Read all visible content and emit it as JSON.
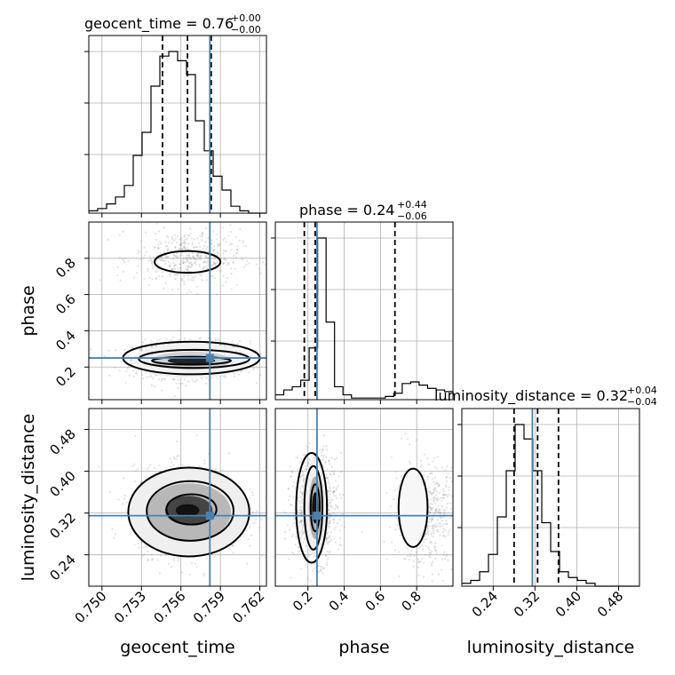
{
  "chart_data": {
    "type": "scatter",
    "subtype": "corner-plot",
    "parameters": [
      "geocent_time",
      "phase",
      "luminosity_distance"
    ],
    "ranges": {
      "geocent_time": [
        0.749,
        0.7625
      ],
      "phase": [
        0.02,
        1.0
      ],
      "luminosity_distance": [
        0.18,
        0.52
      ]
    },
    "truths": {
      "geocent_time": 0.7582,
      "phase": 0.25,
      "luminosity_distance": 0.315
    },
    "titles": {
      "geocent_time": {
        "prefix": "geocent_time = 0.76",
        "upper": "+0.00",
        "lower": "−0.00"
      },
      "phase": {
        "prefix": "phase = 0.24",
        "upper": "+0.44",
        "lower": "−0.06"
      },
      "luminosity_distance": {
        "prefix": "luminosity_distance = 0.32",
        "upper": "+0.04",
        "lower": "−0.04"
      }
    },
    "axis_labels": {
      "x": [
        "geocent_time",
        "phase",
        "luminosity_distance"
      ],
      "y": [
        "phase",
        "luminosity_distance"
      ]
    },
    "ticks": {
      "geocent_time": [
        "0.750",
        "0.753",
        "0.756",
        "0.759",
        "0.762"
      ],
      "phase": [
        "0.2",
        "0.4",
        "0.6",
        "0.8"
      ],
      "luminosity_distance": [
        "0.24",
        "0.32",
        "0.40",
        "0.48"
      ]
    },
    "tick_values": {
      "geocent_time": [
        0.75,
        0.753,
        0.756,
        0.759,
        0.762
      ],
      "phase": [
        0.2,
        0.4,
        0.6,
        0.8
      ],
      "luminosity_distance": [
        0.24,
        0.32,
        0.4,
        0.48
      ]
    },
    "quantiles": {
      "geocent_time": [
        0.7546,
        0.7565,
        0.7583
      ],
      "phase": [
        0.18,
        0.24,
        0.68
      ],
      "luminosity_distance": [
        0.28,
        0.325,
        0.365
      ]
    },
    "histograms": {
      "geocent_time": {
        "edges_start": 0.749,
        "edges_end": 0.7625,
        "counts": [
          1,
          2,
          4,
          7,
          12,
          25,
          35,
          55,
          68,
          70,
          66,
          60,
          40,
          27,
          16,
          10,
          3,
          1,
          0,
          0
        ]
      },
      "phase": {
        "edges_start": 0.02,
        "edges_end": 1.0,
        "counts": [
          3,
          6,
          8,
          12,
          32,
          100,
          48,
          8,
          3,
          1,
          1,
          1,
          1,
          2,
          4,
          10,
          11,
          9,
          7,
          6,
          5
        ]
      },
      "luminosity_distance": {
        "edges_start": 0.18,
        "edges_end": 0.52,
        "counts": [
          1,
          2,
          5,
          11,
          24,
          40,
          56,
          51,
          40,
          22,
          12,
          5,
          3,
          2,
          1,
          0,
          0,
          0,
          0,
          0
        ]
      }
    },
    "grid": true
  }
}
